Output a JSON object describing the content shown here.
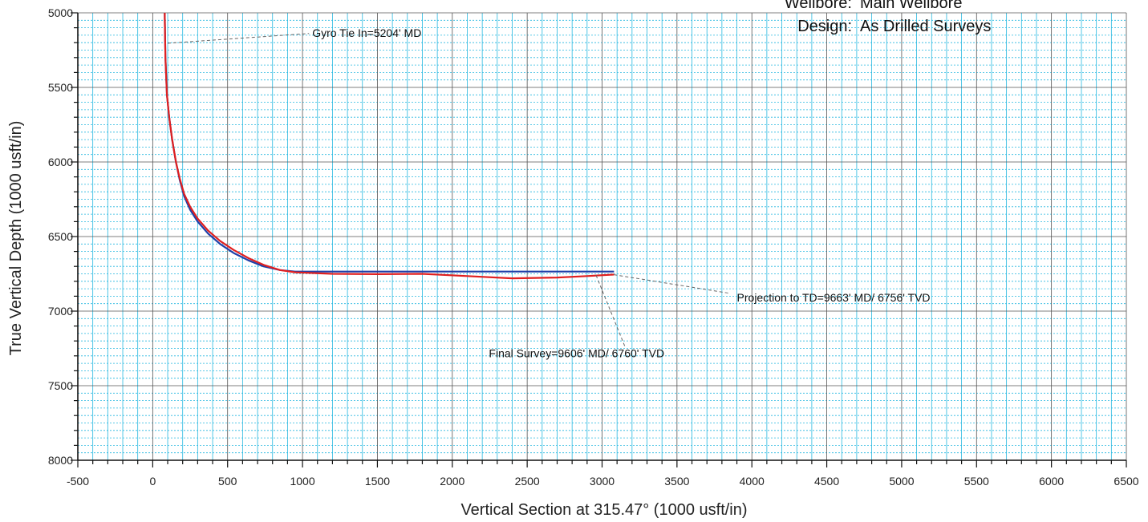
{
  "header": {
    "wellbore_label": "Wellbore:",
    "wellbore_value": "Main Wellbore",
    "design_label": "Design:",
    "design_value": "As Drilled Surveys"
  },
  "chart_data": {
    "type": "line",
    "xlabel": "Vertical Section at 315.47° (1000 usft/in)",
    "ylabel": "True Vertical Depth (1000 usft/in)",
    "xlim": [
      -500,
      6500
    ],
    "ylim": [
      5000,
      8000
    ],
    "y_inverted": true,
    "grid": true,
    "x_ticks": [
      -500,
      0,
      500,
      1000,
      1500,
      2000,
      2500,
      3000,
      3500,
      4000,
      4500,
      5000,
      5500,
      6000,
      6500
    ],
    "y_ticks": [
      5000,
      5500,
      6000,
      6500,
      7000,
      7500,
      8000
    ],
    "colors": {
      "plan": "#1f3fa8",
      "actual": "#e02020",
      "grid_major": "#555555",
      "grid_minor": "#27b8e0"
    },
    "series": [
      {
        "key": "plan",
        "x": [
          80,
          85,
          95,
          110,
          130,
          155,
          180,
          210,
          250,
          300,
          370,
          450,
          540,
          640,
          740,
          850,
          950,
          1100,
          1500,
          2000,
          2500,
          3080
        ],
        "y": [
          5000,
          5300,
          5550,
          5700,
          5850,
          6000,
          6120,
          6230,
          6320,
          6400,
          6480,
          6550,
          6610,
          6660,
          6700,
          6725,
          6735,
          6735,
          6735,
          6735,
          6735,
          6735
        ]
      },
      {
        "key": "actual",
        "x": [
          80,
          85,
          95,
          110,
          130,
          155,
          180,
          210,
          250,
          300,
          370,
          450,
          540,
          640,
          740,
          850,
          950,
          1200,
          1500,
          1800,
          2100,
          2400,
          2700,
          2900,
          3080
        ],
        "y": [
          5000,
          5300,
          5550,
          5700,
          5850,
          6000,
          6110,
          6215,
          6300,
          6380,
          6460,
          6530,
          6590,
          6645,
          6690,
          6725,
          6740,
          6750,
          6752,
          6750,
          6765,
          6780,
          6775,
          6765,
          6755
        ]
      }
    ],
    "annotations": [
      {
        "key": "gyro",
        "text": "Gyro Tie In=5204' MD",
        "point": [
          100,
          5204
        ],
        "label_at": [
          1065,
          5160
        ]
      },
      {
        "key": "final",
        "text": "Final Survey=9606' MD/ 6760' TVD",
        "point": [
          2960,
          6760
        ],
        "label_at": [
          2830,
          7310
        ]
      },
      {
        "key": "projection",
        "text": "Projection to TD=9663' MD/ 6756' TVD",
        "point": [
          3080,
          6756
        ],
        "label_at": [
          3900,
          6935
        ]
      }
    ]
  }
}
